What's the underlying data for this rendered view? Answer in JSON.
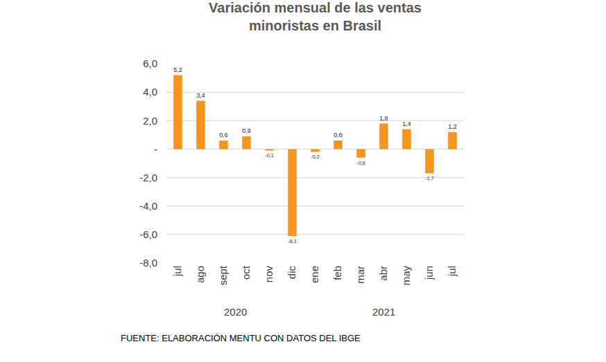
{
  "chart_data": {
    "type": "bar",
    "title": "Variación mensual de las ventas\nminoristas en Brasil",
    "categories": [
      "jul",
      "ago",
      "sept",
      "oct",
      "nov",
      "dic",
      "ene",
      "feb",
      "mar",
      "abr",
      "may",
      "jun",
      "jul"
    ],
    "category_groups": [
      {
        "label": "2020",
        "categories": [
          "jul",
          "ago",
          "sept",
          "oct",
          "nov",
          "dic"
        ]
      },
      {
        "label": "2021",
        "categories": [
          "ene",
          "feb",
          "mar",
          "abr",
          "may",
          "jun",
          "jul"
        ]
      }
    ],
    "values": [
      5.2,
      3.4,
      0.6,
      0.9,
      -0.1,
      -6.1,
      -0.2,
      0.6,
      -0.6,
      1.8,
      1.4,
      -1.7,
      1.2
    ],
    "value_labels": [
      "5,2",
      "3,4",
      "0,6",
      "0,9",
      "-0,1",
      "-6,1",
      "-0,2",
      "0,6",
      "-0,6",
      "1,8",
      "1,4",
      "-1,7",
      "1,2"
    ],
    "data_labels": true,
    "color": "#f7941d",
    "ylim": [
      -8,
      6
    ],
    "yticks": [
      {
        "value": -8,
        "label": "-8,0"
      },
      {
        "value": -6,
        "label": "-6,0"
      },
      {
        "value": -4,
        "label": "-4,0"
      },
      {
        "value": -2,
        "label": "-2,0"
      },
      {
        "value": 0,
        "label": "-"
      },
      {
        "value": 2,
        "label": "2,0"
      },
      {
        "value": 4,
        "label": "4,0"
      },
      {
        "value": 6,
        "label": "6,0"
      }
    ],
    "grid": true,
    "source": "FUENTE: ELABORACIÓN MENTU CON DATOS DEL IBGE"
  }
}
